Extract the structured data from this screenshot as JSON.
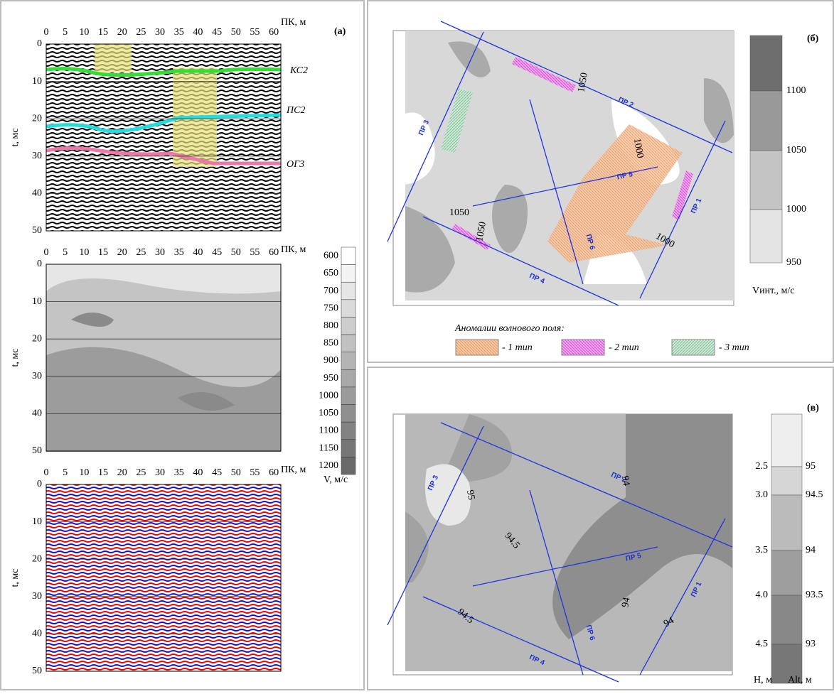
{
  "panel_a": {
    "label": "(а)",
    "x_axis_label": "ПК, м",
    "y_axis_label": "t, мс",
    "xticks": [
      "0",
      "5",
      "10",
      "15",
      "20",
      "25",
      "30",
      "35",
      "40",
      "45",
      "50",
      "55",
      "60"
    ],
    "yticks": [
      "0",
      "10",
      "20",
      "30",
      "40",
      "50"
    ],
    "horizon_labels": [
      "КС2",
      "ПС2",
      "ОГ3"
    ],
    "colorbar_ticks": [
      "600",
      "650",
      "700",
      "750",
      "800",
      "850",
      "900",
      "950",
      "1000",
      "1050",
      "1100",
      "1150",
      "1200"
    ],
    "colorbar_label": "V, м/с"
  },
  "panel_b": {
    "label": "(б)",
    "colorbar_ticks": [
      "1100",
      "1050",
      "1000",
      "950"
    ],
    "colorbar_label": "Vинт., м/с",
    "contour_labels": [
      "1050",
      "1000",
      "1050",
      "1050",
      "1000"
    ],
    "profiles": [
      "ПР 1",
      "ПР 2",
      "ПР 3",
      "ПР 4",
      "ПР 5",
      "ПР 6"
    ],
    "legend_title": "Аномалии волнового поля:",
    "legend": [
      "- 1 тип",
      "- 2 тип",
      "- 3 тип"
    ]
  },
  "panel_c": {
    "label": "(в)",
    "colorbar_left_ticks": [
      "2.5",
      "3.0",
      "3.5",
      "4.0",
      "4.5"
    ],
    "colorbar_right_ticks": [
      "95",
      "94.5",
      "94",
      "93.5",
      "93"
    ],
    "colorbar_left_label": "H, м",
    "colorbar_right_label": "Alt, м",
    "contour_labels": [
      "95",
      "94",
      "94.5",
      "94.5",
      "94",
      "94"
    ],
    "profiles": [
      "ПР 1",
      "ПР 2",
      "ПР 3",
      "ПР 4",
      "ПР 5",
      "ПР 6"
    ]
  }
}
